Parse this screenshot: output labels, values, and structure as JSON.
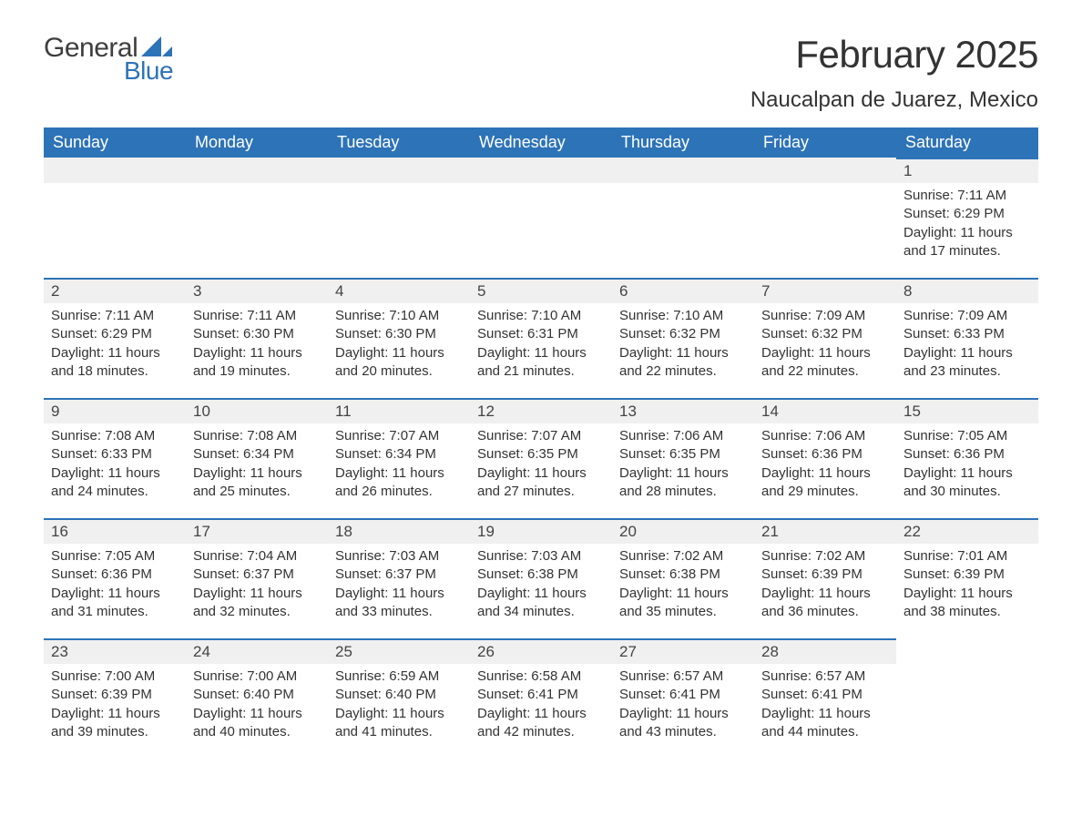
{
  "logo": {
    "text1": "General",
    "text2": "Blue",
    "mark_fill": "#2d73b7"
  },
  "header": {
    "month": "February 2025",
    "location": "Naucalpan de Juarez, Mexico"
  },
  "colors": {
    "header_bg": "#2d73b7",
    "header_text": "#ffffff",
    "row_sep": "#2d73b7",
    "daynum_bg": "#f0f0f0",
    "body_text": "#333333"
  },
  "weekdays": [
    "Sunday",
    "Monday",
    "Tuesday",
    "Wednesday",
    "Thursday",
    "Friday",
    "Saturday"
  ],
  "grid": {
    "first_weekday_index": 6,
    "days_in_month": 28
  },
  "days": {
    "1": {
      "sunrise": "7:11 AM",
      "sunset": "6:29 PM",
      "daylight": "11 hours and 17 minutes."
    },
    "2": {
      "sunrise": "7:11 AM",
      "sunset": "6:29 PM",
      "daylight": "11 hours and 18 minutes."
    },
    "3": {
      "sunrise": "7:11 AM",
      "sunset": "6:30 PM",
      "daylight": "11 hours and 19 minutes."
    },
    "4": {
      "sunrise": "7:10 AM",
      "sunset": "6:30 PM",
      "daylight": "11 hours and 20 minutes."
    },
    "5": {
      "sunrise": "7:10 AM",
      "sunset": "6:31 PM",
      "daylight": "11 hours and 21 minutes."
    },
    "6": {
      "sunrise": "7:10 AM",
      "sunset": "6:32 PM",
      "daylight": "11 hours and 22 minutes."
    },
    "7": {
      "sunrise": "7:09 AM",
      "sunset": "6:32 PM",
      "daylight": "11 hours and 22 minutes."
    },
    "8": {
      "sunrise": "7:09 AM",
      "sunset": "6:33 PM",
      "daylight": "11 hours and 23 minutes."
    },
    "9": {
      "sunrise": "7:08 AM",
      "sunset": "6:33 PM",
      "daylight": "11 hours and 24 minutes."
    },
    "10": {
      "sunrise": "7:08 AM",
      "sunset": "6:34 PM",
      "daylight": "11 hours and 25 minutes."
    },
    "11": {
      "sunrise": "7:07 AM",
      "sunset": "6:34 PM",
      "daylight": "11 hours and 26 minutes."
    },
    "12": {
      "sunrise": "7:07 AM",
      "sunset": "6:35 PM",
      "daylight": "11 hours and 27 minutes."
    },
    "13": {
      "sunrise": "7:06 AM",
      "sunset": "6:35 PM",
      "daylight": "11 hours and 28 minutes."
    },
    "14": {
      "sunrise": "7:06 AM",
      "sunset": "6:36 PM",
      "daylight": "11 hours and 29 minutes."
    },
    "15": {
      "sunrise": "7:05 AM",
      "sunset": "6:36 PM",
      "daylight": "11 hours and 30 minutes."
    },
    "16": {
      "sunrise": "7:05 AM",
      "sunset": "6:36 PM",
      "daylight": "11 hours and 31 minutes."
    },
    "17": {
      "sunrise": "7:04 AM",
      "sunset": "6:37 PM",
      "daylight": "11 hours and 32 minutes."
    },
    "18": {
      "sunrise": "7:03 AM",
      "sunset": "6:37 PM",
      "daylight": "11 hours and 33 minutes."
    },
    "19": {
      "sunrise": "7:03 AM",
      "sunset": "6:38 PM",
      "daylight": "11 hours and 34 minutes."
    },
    "20": {
      "sunrise": "7:02 AM",
      "sunset": "6:38 PM",
      "daylight": "11 hours and 35 minutes."
    },
    "21": {
      "sunrise": "7:02 AM",
      "sunset": "6:39 PM",
      "daylight": "11 hours and 36 minutes."
    },
    "22": {
      "sunrise": "7:01 AM",
      "sunset": "6:39 PM",
      "daylight": "11 hours and 38 minutes."
    },
    "23": {
      "sunrise": "7:00 AM",
      "sunset": "6:39 PM",
      "daylight": "11 hours and 39 minutes."
    },
    "24": {
      "sunrise": "7:00 AM",
      "sunset": "6:40 PM",
      "daylight": "11 hours and 40 minutes."
    },
    "25": {
      "sunrise": "6:59 AM",
      "sunset": "6:40 PM",
      "daylight": "11 hours and 41 minutes."
    },
    "26": {
      "sunrise": "6:58 AM",
      "sunset": "6:41 PM",
      "daylight": "11 hours and 42 minutes."
    },
    "27": {
      "sunrise": "6:57 AM",
      "sunset": "6:41 PM",
      "daylight": "11 hours and 43 minutes."
    },
    "28": {
      "sunrise": "6:57 AM",
      "sunset": "6:41 PM",
      "daylight": "11 hours and 44 minutes."
    }
  },
  "labels": {
    "sunrise": "Sunrise: ",
    "sunset": "Sunset: ",
    "daylight": "Daylight: "
  }
}
